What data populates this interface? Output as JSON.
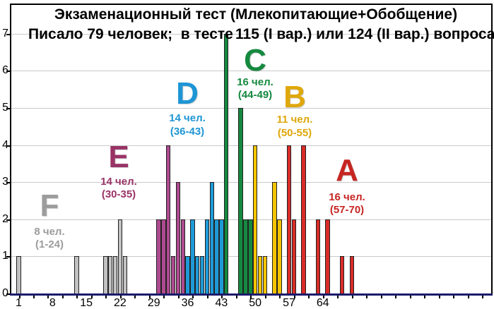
{
  "title": {
    "line1": "Экзаменационный тест (Млекопитающие+Обобщение)",
    "line2_left": "Писало 79 человек;  в тесте",
    "line2_right": "115 (I вар.) или 124 (II вар.) вопроса"
  },
  "chart_data": {
    "type": "bar",
    "title": "Экзаменационный тест (Млекопитающие+Обобщение)",
    "subtitle": "Писало 79 человек; в тесте 115 (I вар.) или 124 (II вар.) вопроса",
    "xlabel": "",
    "ylabel": "",
    "x_tick_labels": [
      1,
      8,
      15,
      22,
      29,
      36,
      43,
      50,
      57,
      64
    ],
    "y_tick_labels": [
      0,
      1,
      2,
      3,
      4,
      5,
      6,
      7
    ],
    "xlim": [
      0,
      99
    ],
    "ylim": [
      0,
      7.8
    ],
    "grid": "horizontal-gray",
    "axis_color": "#1b1b6b",
    "gridline_color": "#c9c9c9",
    "total_students": 79,
    "groups": [
      {
        "grade": "F",
        "count_label": "8 чел.",
        "range_label": "(1-24)",
        "count": 8,
        "range": [
          1,
          24
        ],
        "text_color": "#9c9c9c",
        "bar_color": "#c2c2c2",
        "bars": [
          {
            "x": 1,
            "y": 1
          },
          {
            "x": 13,
            "y": 1
          },
          {
            "x": 19,
            "y": 1
          },
          {
            "x": 20,
            "y": 1
          },
          {
            "x": 21,
            "y": 1
          },
          {
            "x": 22,
            "y": 2
          },
          {
            "x": 23,
            "y": 1
          }
        ]
      },
      {
        "grade": "E",
        "count_label": "14 чел.",
        "range_label": "(30-35)",
        "count": 14,
        "range": [
          30,
          35
        ],
        "text_color": "#993366",
        "bar_color": "#ae4a90",
        "bars": [
          {
            "x": 30,
            "y": 2
          },
          {
            "x": 31,
            "y": 2
          },
          {
            "x": 32,
            "y": 4
          },
          {
            "x": 33,
            "y": 1
          },
          {
            "x": 34,
            "y": 3
          },
          {
            "x": 35,
            "y": 2
          }
        ]
      },
      {
        "grade": "D",
        "count_label": "14 чел.",
        "range_label": "(36-43)",
        "count": 14,
        "range": [
          36,
          43
        ],
        "text_color": "#1e95d4",
        "bar_color": "#1f9ad7",
        "bars": [
          {
            "x": 36,
            "y": 1
          },
          {
            "x": 37,
            "y": 2
          },
          {
            "x": 38,
            "y": 1
          },
          {
            "x": 39,
            "y": 1
          },
          {
            "x": 40,
            "y": 2
          },
          {
            "x": 41,
            "y": 3
          },
          {
            "x": 42,
            "y": 2
          },
          {
            "x": 43,
            "y": 2
          }
        ]
      },
      {
        "grade": "C",
        "count_label": "16 чел.",
        "range_label": "(44-49)",
        "count": 16,
        "range": [
          44,
          49
        ],
        "text_color": "#15893f",
        "bar_color": "#15893f",
        "bars": [
          {
            "x": 44,
            "y": 7
          },
          {
            "x": 47,
            "y": 5
          },
          {
            "x": 48,
            "y": 2
          },
          {
            "x": 49,
            "y": 2
          }
        ]
      },
      {
        "grade": "B",
        "count_label": "11 чел.",
        "range_label": "(50-55)",
        "count": 11,
        "range": [
          50,
          55
        ],
        "text_color": "#dfa70a",
        "bar_color": "#f5c400",
        "bars": [
          {
            "x": 50,
            "y": 4
          },
          {
            "x": 51,
            "y": 1
          },
          {
            "x": 52,
            "y": 1
          },
          {
            "x": 54,
            "y": 3
          },
          {
            "x": 55,
            "y": 2
          }
        ]
      },
      {
        "grade": "A",
        "count_label": "16 чел.",
        "range_label": "(57-70)",
        "count": 16,
        "range": [
          57,
          70
        ],
        "text_color": "#c62622",
        "bar_color": "#d92c28",
        "bars": [
          {
            "x": 57,
            "y": 4
          },
          {
            "x": 58,
            "y": 2
          },
          {
            "x": 60,
            "y": 4
          },
          {
            "x": 63,
            "y": 2
          },
          {
            "x": 65,
            "y": 2
          },
          {
            "x": 68,
            "y": 1
          },
          {
            "x": 70,
            "y": 1
          }
        ]
      }
    ]
  }
}
